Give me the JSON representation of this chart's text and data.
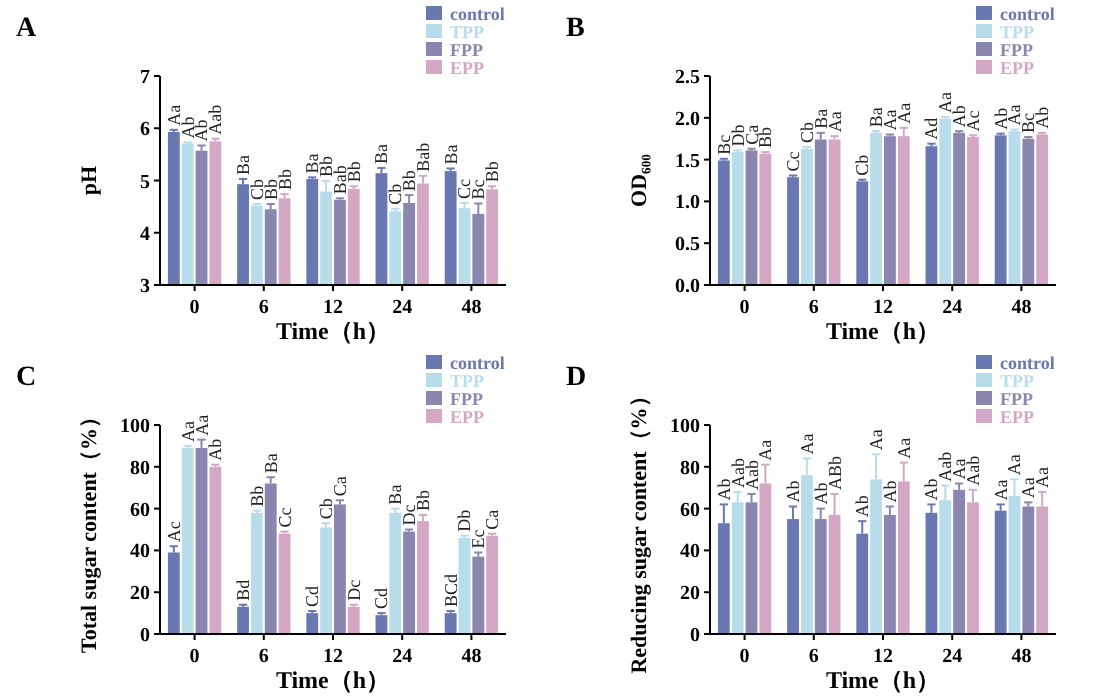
{
  "chart_data": [
    {
      "type": "bar",
      "title": "A",
      "categories": [
        "0",
        "6",
        "12",
        "24",
        "48"
      ],
      "xlabel": "Time（h）",
      "ylabel": "pH",
      "ylim": [
        3,
        7
      ],
      "yticks": [
        3,
        4,
        5,
        6,
        7
      ],
      "legend": "top right",
      "series": [
        {
          "name": "control",
          "color": "#6a78b2",
          "values": [
            5.93,
            4.93,
            5.03,
            5.14,
            5.18
          ],
          "errors": [
            0.04,
            0.1,
            0.03,
            0.1,
            0.05
          ],
          "value_labels": [
            "Aa",
            "Ba",
            "Ba",
            "Ba",
            "Ba"
          ]
        },
        {
          "name": "TPP",
          "color": "#b7dcea",
          "values": [
            5.71,
            4.52,
            4.79,
            4.41,
            4.47
          ],
          "errors": [
            0.02,
            0.03,
            0.2,
            0.05,
            0.1
          ],
          "value_labels": [
            "Ab",
            "Cb",
            "Bb",
            "Cb",
            "Cc"
          ]
        },
        {
          "name": "FPP",
          "color": "#8a86b0",
          "values": [
            5.57,
            4.45,
            4.63,
            4.57,
            4.36
          ],
          "errors": [
            0.1,
            0.1,
            0.03,
            0.15,
            0.2
          ],
          "value_labels": [
            "Ab",
            "Bb",
            "Bab",
            "Bb",
            "Bc"
          ]
        },
        {
          "name": "EPP",
          "color": "#d4a8c4",
          "values": [
            5.75,
            4.66,
            4.84,
            4.94,
            4.83
          ],
          "errors": [
            0.05,
            0.08,
            0.05,
            0.15,
            0.06
          ],
          "value_labels": [
            "Aab",
            "Bb",
            "Bb",
            "Bab",
            "Bb"
          ]
        }
      ]
    },
    {
      "type": "bar",
      "title": "B",
      "categories": [
        "0",
        "6",
        "12",
        "24",
        "48"
      ],
      "xlabel": "Time（h）",
      "ylabel": "OD₆₀₀",
      "ylim": [
        0,
        2.5
      ],
      "yticks": [
        {
          "value": 0,
          "label": "0.0"
        },
        0.5,
        {
          "value": 1,
          "label": "1.0"
        },
        1.5,
        {
          "value": 2,
          "label": "2.0"
        },
        2.5
      ],
      "legend": "top right",
      "series": [
        {
          "name": "control",
          "color": "#6a78b2",
          "values": [
            1.49,
            1.29,
            1.24,
            1.66,
            1.79
          ],
          "errors": [
            0.02,
            0.02,
            0.02,
            0.03,
            0.02
          ],
          "value_labels": [
            "Bc",
            "Cc",
            "Cb",
            "Ad",
            "Ab"
          ]
        },
        {
          "name": "TPP",
          "color": "#b7dcea",
          "values": [
            1.59,
            1.63,
            1.82,
            1.99,
            1.84
          ],
          "errors": [
            0.02,
            0.02,
            0.02,
            0.02,
            0.02
          ],
          "value_labels": [
            "Db",
            "Cb",
            "Ba",
            "Aa",
            "Aa"
          ]
        },
        {
          "name": "FPP",
          "color": "#8a86b0",
          "values": [
            1.61,
            1.74,
            1.78,
            1.82,
            1.75
          ],
          "errors": [
            0.02,
            0.08,
            0.02,
            0.02,
            0.02
          ],
          "value_labels": [
            "Ca",
            "Ba",
            "Aa",
            "Ab",
            "Bc"
          ]
        },
        {
          "name": "EPP",
          "color": "#d4a8c4",
          "values": [
            1.57,
            1.74,
            1.78,
            1.77,
            1.8
          ],
          "errors": [
            0.02,
            0.04,
            0.1,
            0.02,
            0.02
          ],
          "value_labels": [
            "Bb",
            "Aa",
            "Aa",
            "Ac",
            "Ab"
          ]
        }
      ]
    },
    {
      "type": "bar",
      "title": "C",
      "categories": [
        "0",
        "6",
        "12",
        "24",
        "48"
      ],
      "xlabel": "Time（h）",
      "ylabel": "Total sugar content（%）",
      "ylim": [
        0,
        100
      ],
      "yticks": [
        0,
        20,
        40,
        60,
        80,
        100
      ],
      "legend": "top right",
      "series": [
        {
          "name": "control",
          "color": "#6a78b2",
          "values": [
            39,
            13,
            10,
            9,
            10
          ],
          "errors": [
            3,
            1,
            1,
            1,
            1
          ],
          "value_labels": [
            "Ac",
            "Bd",
            "Cd",
            "Cd",
            "BCd"
          ]
        },
        {
          "name": "TPP",
          "color": "#b7dcea",
          "values": [
            89,
            58,
            51,
            58,
            46
          ],
          "errors": [
            1,
            1,
            2,
            2,
            1
          ],
          "value_labels": [
            "Aa",
            "Bb",
            "Cb",
            "Ba",
            "Db"
          ]
        },
        {
          "name": "FPP",
          "color": "#8a86b0",
          "values": [
            89,
            72,
            62,
            49,
            37
          ],
          "errors": [
            4,
            3,
            2,
            1,
            2
          ],
          "value_labels": [
            "Aa",
            "Ba",
            "Ca",
            "Dc",
            "Ec"
          ]
        },
        {
          "name": "EPP",
          "color": "#d4a8c4",
          "values": [
            80,
            48,
            13,
            54,
            47
          ],
          "errors": [
            1,
            1,
            1,
            3,
            1
          ],
          "value_labels": [
            "Ab",
            "Cc",
            "Dc",
            "Bb",
            "Ca"
          ]
        }
      ]
    },
    {
      "type": "bar",
      "title": "D",
      "categories": [
        "0",
        "6",
        "12",
        "24",
        "48"
      ],
      "xlabel": "Time（h）",
      "ylabel": "Reducing sugar content（%）",
      "ylim": [
        0,
        100
      ],
      "yticks": [
        0,
        20,
        40,
        60,
        80,
        100
      ],
      "legend": "top right",
      "series": [
        {
          "name": "control",
          "color": "#6a78b2",
          "values": [
            53,
            55,
            48,
            58,
            59
          ],
          "errors": [
            9,
            6,
            6,
            4,
            3
          ],
          "value_labels": [
            "Ab",
            "Ab",
            "Ab",
            "Ab",
            "Aa"
          ]
        },
        {
          "name": "TPP",
          "color": "#b7dcea",
          "values": [
            63,
            76,
            74,
            64,
            66
          ],
          "errors": [
            5,
            8,
            12,
            7,
            8
          ],
          "value_labels": [
            "Aab",
            "Aa",
            "Aa",
            "Aab",
            "Aa"
          ]
        },
        {
          "name": "FPP",
          "color": "#8a86b0",
          "values": [
            63,
            55,
            57,
            69,
            61
          ],
          "errors": [
            4,
            5,
            4,
            3,
            2
          ],
          "value_labels": [
            "Aab",
            "Ab",
            "Ab",
            "Aa",
            "Aa"
          ]
        },
        {
          "name": "EPP",
          "color": "#d4a8c4",
          "values": [
            72,
            57,
            73,
            63,
            61
          ],
          "errors": [
            9,
            10,
            9,
            6,
            7
          ],
          "value_labels": [
            "Aa",
            "ABb",
            "Aa",
            "Aab",
            "Aa"
          ]
        }
      ]
    }
  ]
}
